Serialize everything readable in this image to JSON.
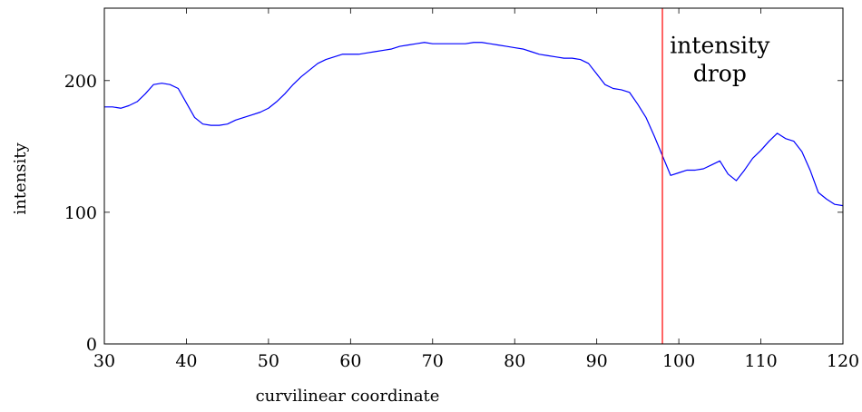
{
  "chart_data": {
    "type": "line",
    "title": "",
    "xlabel": "curvilinear coordinate",
    "ylabel": "intensity",
    "xlim": [
      30,
      120
    ],
    "ylim": [
      0,
      255
    ],
    "grid": false,
    "x_ticks": [
      30,
      40,
      50,
      60,
      70,
      80,
      90,
      100,
      110,
      120
    ],
    "y_ticks": [
      0,
      100,
      200
    ],
    "series": [
      {
        "color": "#0000ff",
        "x": [
          30,
          31,
          32,
          33,
          34,
          35,
          36,
          37,
          38,
          39,
          40,
          41,
          42,
          43,
          44,
          45,
          46,
          47,
          48,
          49,
          50,
          51,
          52,
          53,
          54,
          55,
          56,
          57,
          58,
          59,
          60,
          61,
          62,
          63,
          64,
          65,
          66,
          67,
          68,
          69,
          70,
          71,
          72,
          73,
          74,
          75,
          76,
          77,
          78,
          79,
          80,
          81,
          82,
          83,
          84,
          85,
          86,
          87,
          88,
          89,
          90,
          91,
          92,
          93,
          94,
          95,
          96,
          97,
          98,
          99,
          100,
          101,
          102,
          103,
          104,
          105,
          106,
          107,
          108,
          109,
          110,
          111,
          112,
          113,
          114,
          115,
          116,
          117,
          118,
          119,
          120
        ],
        "y": [
          180,
          180,
          179,
          181,
          184,
          190,
          197,
          198,
          197,
          194,
          183,
          172,
          167,
          166,
          166,
          167,
          170,
          172,
          174,
          176,
          179,
          184,
          190,
          197,
          203,
          208,
          213,
          216,
          218,
          220,
          220,
          220,
          221,
          222,
          223,
          224,
          226,
          227,
          228,
          229,
          228,
          228,
          228,
          228,
          228,
          229,
          229,
          228,
          227,
          226,
          225,
          224,
          222,
          220,
          219,
          218,
          217,
          217,
          216,
          213,
          205,
          197,
          194,
          193,
          191,
          182,
          172,
          158,
          143,
          128,
          130,
          132,
          132,
          133,
          136,
          139,
          129,
          124,
          132,
          141,
          147,
          154,
          160,
          156,
          154,
          146,
          132,
          115,
          110,
          106,
          105
        ]
      }
    ],
    "vertical_line": {
      "x": 98,
      "color": "#ff0000"
    },
    "annotation": {
      "lines": [
        "intensity",
        "drop"
      ],
      "x": 105,
      "y": 221
    }
  }
}
